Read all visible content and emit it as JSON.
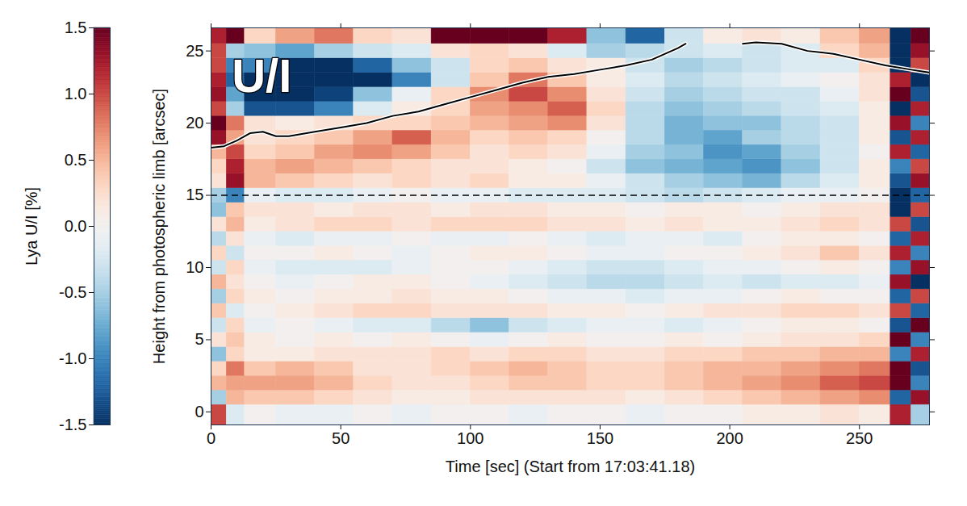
{
  "chart_data": {
    "type": "heatmap",
    "xlabel": "Time [sec] (Start from 17:03:41.18)",
    "ylabel": "Height from photospheric limb [arcsec]",
    "xlim": [
      0,
      277
    ],
    "xticks": [
      0,
      50,
      100,
      150,
      200,
      250
    ],
    "ylim": [
      -0.9,
      26.6
    ],
    "yticks": [
      0,
      5,
      10,
      15,
      20,
      25
    ],
    "x_edges": [
      0,
      6,
      13,
      25,
      40,
      55,
      70,
      85,
      100,
      115,
      130,
      145,
      160,
      175,
      190,
      205,
      220,
      235,
      250,
      262,
      270,
      277
    ],
    "y_edges": [
      -0.9,
      0.5,
      1.5,
      2.5,
      3.5,
      4.5,
      5.5,
      6.5,
      7.5,
      8.5,
      9.5,
      10.5,
      11.5,
      12.5,
      13.5,
      14.5,
      15.5,
      16.5,
      17.5,
      18.5,
      19.5,
      20.5,
      21.5,
      22.5,
      23.5,
      24.5,
      25.5,
      26.6
    ],
    "cells": [
      [
        1.0,
        -0.2,
        0.0,
        -0.1,
        -0.1,
        0.0,
        -0.1,
        0.0,
        0.0,
        -0.1,
        0.0,
        0.0,
        -0.1,
        0.0,
        0.0,
        0.1,
        0.1,
        0.2,
        0.1,
        1.2,
        -0.5
      ],
      [
        -0.5,
        0.5,
        0.4,
        0.4,
        0.3,
        0.2,
        0.1,
        0.1,
        0.2,
        0.2,
        0.2,
        0.2,
        0.1,
        0.2,
        0.3,
        0.4,
        0.5,
        0.6,
        0.7,
        -1.2,
        1.3
      ],
      [
        0.5,
        0.6,
        0.6,
        0.6,
        0.5,
        0.3,
        0.2,
        0.2,
        0.3,
        0.4,
        0.4,
        0.3,
        0.3,
        0.4,
        0.5,
        0.6,
        0.7,
        0.9,
        1.0,
        1.5,
        -1.0
      ],
      [
        0.3,
        0.8,
        0.4,
        0.5,
        0.4,
        0.2,
        0.2,
        0.3,
        0.4,
        0.5,
        0.4,
        0.3,
        0.3,
        0.4,
        0.5,
        0.5,
        0.6,
        0.7,
        0.8,
        1.5,
        -1.3
      ],
      [
        -0.6,
        0.3,
        0.1,
        0.1,
        0.2,
        0.2,
        0.2,
        0.3,
        0.2,
        0.3,
        0.3,
        0.2,
        0.2,
        0.3,
        0.3,
        0.4,
        0.4,
        0.5,
        0.5,
        -1.0,
        1.2
      ],
      [
        0.2,
        0.4,
        0.1,
        0.0,
        0.1,
        0.0,
        0.1,
        0.0,
        -0.1,
        0.0,
        0.1,
        0.0,
        0.0,
        0.1,
        0.0,
        0.1,
        0.2,
        0.2,
        0.3,
        1.5,
        -1.0
      ],
      [
        -0.3,
        0.3,
        -0.1,
        0.0,
        -0.1,
        -0.2,
        -0.2,
        -0.4,
        -0.6,
        -0.3,
        -0.2,
        -0.1,
        -0.1,
        -0.2,
        -0.1,
        0.0,
        0.1,
        0.1,
        0.0,
        -1.3,
        1.5
      ],
      [
        0.4,
        -0.2,
        0.0,
        0.1,
        0.2,
        0.3,
        0.3,
        0.2,
        0.2,
        0.2,
        0.1,
        0.1,
        0.0,
        0.1,
        0.2,
        0.2,
        0.3,
        0.3,
        0.2,
        1.0,
        -1.2
      ],
      [
        -0.5,
        0.3,
        0.1,
        0.0,
        0.1,
        0.1,
        0.2,
        0.1,
        0.1,
        0.0,
        -0.1,
        -0.1,
        -0.2,
        -0.1,
        -0.1,
        0.0,
        0.1,
        0.0,
        0.0,
        -1.2,
        1.0
      ],
      [
        0.5,
        0.2,
        0.0,
        -0.1,
        0.0,
        0.1,
        0.1,
        0.0,
        -0.1,
        -0.2,
        -0.3,
        -0.4,
        -0.4,
        -0.3,
        -0.2,
        -0.3,
        -0.2,
        -0.2,
        -0.1,
        1.3,
        -1.5
      ],
      [
        -0.3,
        0.3,
        -0.1,
        -0.2,
        -0.2,
        -0.2,
        -0.1,
        0.0,
        0.0,
        -0.1,
        -0.2,
        -0.3,
        -0.3,
        -0.2,
        -0.1,
        -0.1,
        0.0,
        0.1,
        0.0,
        -1.0,
        1.3
      ],
      [
        0.3,
        -0.3,
        0.0,
        0.0,
        0.1,
        0.0,
        -0.1,
        0.0,
        0.1,
        0.1,
        0.0,
        -0.1,
        -0.1,
        0.0,
        0.0,
        0.1,
        0.2,
        0.4,
        0.2,
        1.2,
        -1.0
      ],
      [
        -0.4,
        0.2,
        -0.1,
        -0.2,
        -0.1,
        -0.1,
        0.0,
        -0.1,
        -0.1,
        0.0,
        -0.1,
        -0.2,
        -0.1,
        -0.1,
        -0.2,
        0.0,
        0.1,
        0.1,
        0.0,
        -1.2,
        1.2
      ],
      [
        0.2,
        0.5,
        0.1,
        0.2,
        0.3,
        0.3,
        0.2,
        0.3,
        0.3,
        0.3,
        0.2,
        0.2,
        0.1,
        0.2,
        0.1,
        0.1,
        0.2,
        0.3,
        0.2,
        1.0,
        -1.3
      ],
      [
        -0.6,
        0.4,
        0.2,
        0.2,
        0.1,
        0.2,
        0.2,
        0.1,
        0.2,
        0.2,
        0.1,
        0.1,
        0.0,
        0.1,
        0.1,
        0.0,
        0.1,
        0.2,
        0.2,
        -1.5,
        1.0
      ],
      [
        -0.5,
        -1.0,
        -0.1,
        -0.2,
        -0.2,
        -0.1,
        0.0,
        -0.1,
        -0.1,
        -0.2,
        -0.2,
        -0.2,
        -0.3,
        -0.4,
        -0.3,
        -0.2,
        -0.1,
        -0.1,
        0.0,
        -1.5,
        -1.2
      ],
      [
        0.2,
        1.3,
        0.5,
        0.4,
        0.3,
        0.2,
        0.3,
        0.2,
        0.3,
        0.1,
        0.1,
        -0.1,
        -0.3,
        -0.5,
        -0.6,
        -0.7,
        -0.4,
        -0.2,
        0.1,
        -1.3,
        1.3
      ],
      [
        0.3,
        1.2,
        0.5,
        0.6,
        0.5,
        0.4,
        0.3,
        0.2,
        0.2,
        0.1,
        0.0,
        -0.3,
        -0.6,
        -0.7,
        -0.8,
        -0.9,
        -0.6,
        -0.3,
        0.1,
        -1.0,
        1.0
      ],
      [
        0.5,
        1.0,
        0.3,
        0.4,
        0.6,
        0.7,
        0.6,
        0.4,
        0.2,
        0.3,
        0.2,
        -0.1,
        -0.5,
        -0.6,
        -0.9,
        -0.8,
        -0.5,
        -0.3,
        0.0,
        1.2,
        -1.2
      ],
      [
        1.3,
        0.6,
        0.2,
        0.3,
        0.4,
        0.6,
        0.9,
        0.5,
        0.3,
        0.4,
        0.3,
        0.0,
        -0.4,
        -0.7,
        -0.8,
        -0.5,
        -0.4,
        -0.3,
        0.1,
        -1.3,
        1.2
      ],
      [
        1.5,
        0.8,
        0.2,
        0.1,
        0.2,
        0.3,
        0.3,
        0.4,
        0.5,
        0.6,
        0.7,
        0.2,
        -0.4,
        -0.7,
        -0.6,
        -0.6,
        -0.4,
        -0.3,
        0.1,
        1.3,
        -1.0
      ],
      [
        1.0,
        -0.5,
        -1.3,
        -1.3,
        -1.0,
        -0.2,
        0.1,
        0.3,
        0.6,
        0.7,
        0.9,
        0.3,
        -0.4,
        -0.6,
        -0.5,
        -0.4,
        -0.3,
        -0.2,
        0.1,
        -1.5,
        1.2
      ],
      [
        1.3,
        -0.8,
        -1.5,
        -1.5,
        -1.4,
        -0.6,
        -0.1,
        0.3,
        0.7,
        1.0,
        0.7,
        0.2,
        -0.3,
        -0.5,
        -0.4,
        -0.3,
        -0.3,
        -0.1,
        0.2,
        1.5,
        -1.3
      ],
      [
        1.2,
        -1.2,
        -1.5,
        -1.5,
        -1.5,
        -1.5,
        -1.0,
        -0.3,
        0.4,
        0.8,
        0.4,
        0.1,
        -0.2,
        -0.4,
        -0.3,
        -0.2,
        -0.1,
        0.0,
        0.2,
        1.2,
        -1.5
      ],
      [
        1.0,
        -1.0,
        -1.0,
        -1.5,
        -1.5,
        -1.2,
        -0.6,
        -0.3,
        0.3,
        0.4,
        0.2,
        0.1,
        -0.3,
        -0.5,
        -0.4,
        -0.3,
        -0.2,
        -0.2,
        0.3,
        -1.5,
        1.0
      ],
      [
        1.0,
        -0.5,
        -0.6,
        -0.8,
        -0.5,
        -0.3,
        -0.2,
        0.2,
        0.3,
        0.2,
        -0.2,
        -0.5,
        -0.4,
        -0.3,
        -0.2,
        -0.3,
        -0.2,
        0.3,
        0.5,
        -1.5,
        1.3
      ],
      [
        1.2,
        1.5,
        0.3,
        0.6,
        0.8,
        0.3,
        0.2,
        1.5,
        1.5,
        1.5,
        1.2,
        -0.6,
        -1.2,
        -0.3,
        0.1,
        0.2,
        0.1,
        0.4,
        0.6,
        -1.5,
        1.5
      ]
    ],
    "colorbar": {
      "label": "Lya U/I [%]",
      "range": [
        -1.5,
        1.5
      ],
      "ticks": [
        -1.5,
        {
          "value": -1,
          "label": "-1.0"
        },
        -0.5,
        {
          "value": 0,
          "label": "0.0"
        },
        0.5,
        {
          "value": 1,
          "label": "1.0"
        },
        1.5
      ]
    },
    "line": {
      "color": "black",
      "line_style": "solid",
      "x": [
        0,
        5,
        10,
        15,
        20,
        25,
        30,
        40,
        50,
        60,
        70,
        80,
        90,
        100,
        110,
        120,
        130,
        140,
        150,
        160,
        170,
        180,
        183,
        194,
        205,
        210,
        220,
        230,
        240,
        250,
        260,
        270,
        277
      ],
      "values": [
        18.3,
        18.4,
        18.8,
        19.3,
        19.4,
        19.1,
        19.1,
        19.4,
        19.7,
        20.0,
        20.5,
        20.8,
        21.3,
        21.8,
        22.3,
        22.8,
        23.2,
        23.4,
        23.7,
        24.0,
        24.4,
        25.2,
        25.5,
        null,
        25.5,
        25.6,
        25.5,
        25.0,
        24.8,
        24.4,
        24.0,
        23.7,
        23.5
      ]
    },
    "reference_lines": [
      {
        "y": 15,
        "color": "black",
        "line_style": "dashed"
      }
    ],
    "annotations": [
      {
        "text": "U/I",
        "x": 8,
        "y": 23.2
      }
    ]
  }
}
